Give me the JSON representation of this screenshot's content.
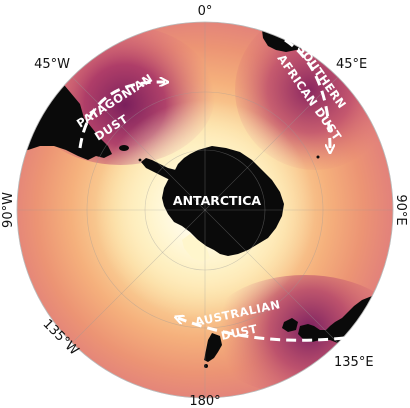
{
  "map": {
    "projection": "south-polar-stereographic",
    "colors": {
      "land": "#0a0a0a",
      "ocean_low": "#fff2c2",
      "ocean_mid": "#f2a575",
      "ocean_high": "#cf5a72",
      "dust_high": "#7a1f5c",
      "arrow": "#ffffff"
    },
    "longitude_labels": {
      "top": "0°",
      "top_right": "45°E",
      "right": "90°E",
      "bottom_right": "135°E",
      "bottom": "180°",
      "bottom_left": "135°W",
      "left": "90°W",
      "top_left": "45°W"
    },
    "continent_label": "ANTARCTICA",
    "dust_sources": {
      "patagonian": {
        "line1": "PATAGONIAN",
        "line2": "DUST"
      },
      "southern_african": {
        "line1": "SOUTHERN",
        "line2": "AFRICAN DUST"
      },
      "australian": {
        "line1": "AUSTRALIAN",
        "line2": "DUST"
      }
    }
  }
}
